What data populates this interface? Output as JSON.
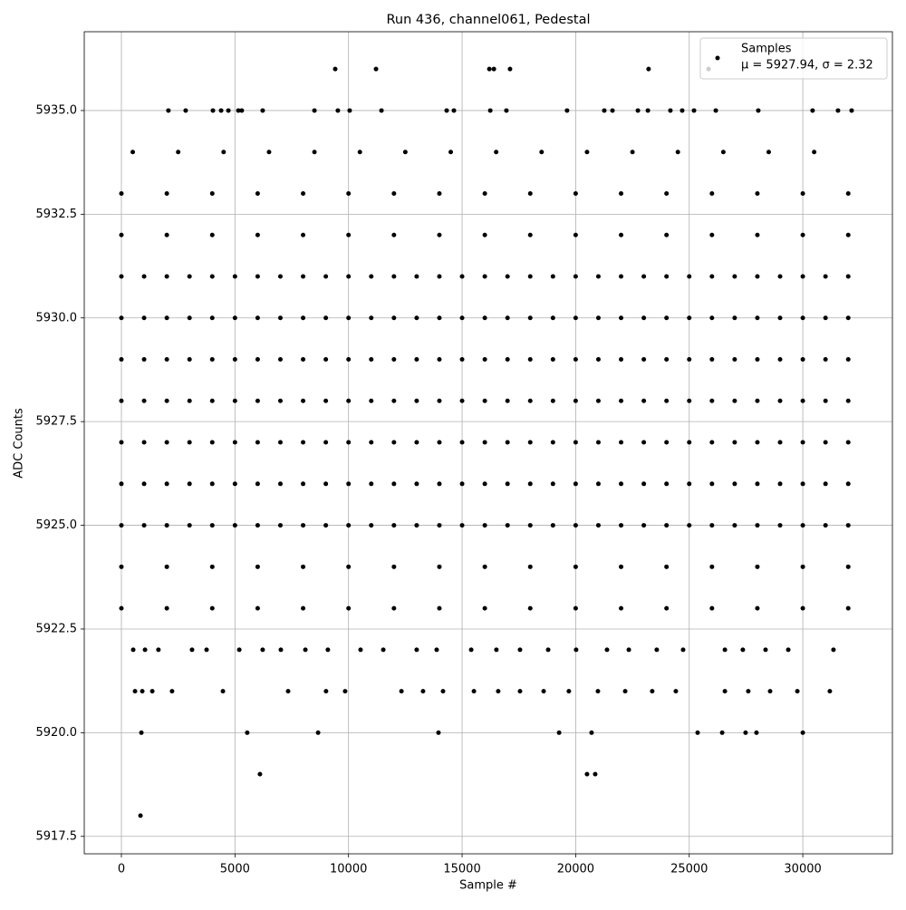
{
  "chart_data": {
    "type": "scatter",
    "title": "Run 436, channel061, Pedestal",
    "x_label": "Sample #",
    "y_label": "ADC Counts",
    "xlim": [
      -1635,
      33945
    ],
    "ylim": [
      5917.08,
      5936.9
    ],
    "xticks": [
      0,
      5000,
      10000,
      15000,
      20000,
      25000,
      30000
    ],
    "yticks": [
      {
        "value": 5917.5,
        "label": "5917.5"
      },
      {
        "value": 5920,
        "label": "5920.0"
      },
      {
        "value": 5922.5,
        "label": "5922.5"
      },
      {
        "value": 5925,
        "label": "5925.0"
      },
      {
        "value": 5927.5,
        "label": "5927.5"
      },
      {
        "value": 5930,
        "label": "5930.0"
      },
      {
        "value": 5932.5,
        "label": "5932.5"
      },
      {
        "value": 5935,
        "label": "5935.0"
      }
    ],
    "grid": true,
    "legend": "upper right",
    "series": [
      {
        "name": "Samples",
        "label": "μ = 5927.94, σ = 2.32",
        "color": "#000000",
        "x": [
          9414,
          11210,
          16200,
          16400,
          17110,
          23210,
          25850,
          2070,
          2830,
          4030,
          4390,
          4710,
          5150,
          5300,
          6220,
          8500,
          9530,
          10050,
          11450,
          14320,
          14640,
          16240,
          16950,
          19620,
          21260,
          21620,
          22740,
          23180,
          24170,
          24690,
          25210,
          26170,
          28040,
          30430,
          31550,
          32150,
          500,
          2500,
          4500,
          6500,
          8500,
          10500,
          12500,
          14500,
          16500,
          18500,
          20500,
          22500,
          24500,
          26500,
          28500,
          30500,
          0,
          2000,
          4000,
          6000,
          8000,
          10000,
          12000,
          14000,
          16000,
          18000,
          20000,
          22000,
          24000,
          26000,
          28000,
          30000,
          32000,
          0,
          2000,
          4000,
          6000,
          8000,
          10000,
          12000,
          14000,
          16000,
          18000,
          20000,
          22000,
          24000,
          26000,
          28000,
          30000,
          32000,
          0,
          1000,
          2000,
          3000,
          4000,
          5000,
          6000,
          7000,
          8000,
          9000,
          10000,
          11000,
          12000,
          13000,
          14000,
          15000,
          16000,
          17000,
          18000,
          19000,
          20000,
          21000,
          22000,
          23000,
          24000,
          25000,
          26000,
          27000,
          28000,
          29000,
          30000,
          31000,
          32000,
          0,
          1000,
          2000,
          3000,
          4000,
          5000,
          6000,
          7000,
          8000,
          9000,
          10000,
          11000,
          12000,
          13000,
          14000,
          15000,
          16000,
          17000,
          18000,
          19000,
          20000,
          21000,
          22000,
          23000,
          24000,
          25000,
          26000,
          27000,
          28000,
          29000,
          30000,
          31000,
          32000,
          0,
          1000,
          2000,
          3000,
          4000,
          5000,
          6000,
          7000,
          8000,
          9000,
          10000,
          11000,
          12000,
          13000,
          14000,
          15000,
          16000,
          17000,
          18000,
          19000,
          20000,
          21000,
          22000,
          23000,
          24000,
          25000,
          26000,
          27000,
          28000,
          29000,
          30000,
          31000,
          32000,
          0,
          1000,
          2000,
          3000,
          4000,
          5000,
          6000,
          7000,
          8000,
          9000,
          10000,
          11000,
          12000,
          13000,
          14000,
          15000,
          16000,
          17000,
          18000,
          19000,
          20000,
          21000,
          22000,
          23000,
          24000,
          25000,
          26000,
          27000,
          28000,
          29000,
          30000,
          31000,
          32000,
          0,
          1000,
          2000,
          3000,
          4000,
          5000,
          6000,
          7000,
          8000,
          9000,
          10000,
          11000,
          12000,
          13000,
          14000,
          15000,
          16000,
          17000,
          18000,
          19000,
          20000,
          21000,
          22000,
          23000,
          24000,
          25000,
          26000,
          27000,
          28000,
          29000,
          30000,
          31000,
          32000,
          0,
          1000,
          2000,
          3000,
          4000,
          5000,
          6000,
          7000,
          8000,
          9000,
          10000,
          11000,
          12000,
          13000,
          14000,
          15000,
          16000,
          17000,
          18000,
          19000,
          20000,
          21000,
          22000,
          23000,
          24000,
          25000,
          26000,
          27000,
          28000,
          29000,
          30000,
          31000,
          32000,
          0,
          1000,
          2000,
          3000,
          4000,
          5000,
          6000,
          7000,
          8000,
          9000,
          10000,
          11000,
          12000,
          13000,
          14000,
          15000,
          16000,
          17000,
          18000,
          19000,
          20000,
          21000,
          22000,
          23000,
          24000,
          25000,
          26000,
          27000,
          28000,
          29000,
          30000,
          31000,
          32000,
          0,
          2000,
          4000,
          6000,
          8000,
          10000,
          12000,
          14000,
          16000,
          18000,
          20000,
          22000,
          24000,
          26000,
          28000,
          30000,
          32000,
          0,
          2000,
          4000,
          6000,
          8000,
          10000,
          12000,
          14000,
          16000,
          18000,
          20000,
          22000,
          24000,
          26000,
          28000,
          30000,
          32000,
          520,
          1040,
          1630,
          3110,
          3750,
          5190,
          6220,
          7020,
          8100,
          9090,
          10530,
          11530,
          13000,
          13880,
          15400,
          16510,
          17550,
          18790,
          20020,
          21380,
          22340,
          23570,
          24730,
          26570,
          27360,
          28360,
          29360,
          31350,
          600,
          920,
          1360,
          2230,
          4470,
          7340,
          9010,
          9850,
          12330,
          13280,
          14160,
          15520,
          16590,
          17550,
          18590,
          19700,
          20980,
          22180,
          23370,
          24410,
          26570,
          27600,
          28560,
          29760,
          31190,
          880,
          5540,
          8660,
          13960,
          19270,
          20700,
          25370,
          26450,
          27480,
          27960,
          30000,
          6100,
          20500,
          20860,
          840
        ],
        "y": [
          5936,
          5936,
          5936,
          5936,
          5936,
          5936,
          5936,
          5935,
          5935,
          5935,
          5935,
          5935,
          5935,
          5935,
          5935,
          5935,
          5935,
          5935,
          5935,
          5935,
          5935,
          5935,
          5935,
          5935,
          5935,
          5935,
          5935,
          5935,
          5935,
          5935,
          5935,
          5935,
          5935,
          5935,
          5935,
          5935,
          5934,
          5934,
          5934,
          5934,
          5934,
          5934,
          5934,
          5934,
          5934,
          5934,
          5934,
          5934,
          5934,
          5934,
          5934,
          5934,
          5933,
          5933,
          5933,
          5933,
          5933,
          5933,
          5933,
          5933,
          5933,
          5933,
          5933,
          5933,
          5933,
          5933,
          5933,
          5933,
          5933,
          5932,
          5932,
          5932,
          5932,
          5932,
          5932,
          5932,
          5932,
          5932,
          5932,
          5932,
          5932,
          5932,
          5932,
          5932,
          5932,
          5932,
          5931,
          5931,
          5931,
          5931,
          5931,
          5931,
          5931,
          5931,
          5931,
          5931,
          5931,
          5931,
          5931,
          5931,
          5931,
          5931,
          5931,
          5931,
          5931,
          5931,
          5931,
          5931,
          5931,
          5931,
          5931,
          5931,
          5931,
          5931,
          5931,
          5931,
          5931,
          5931,
          5931,
          5930,
          5930,
          5930,
          5930,
          5930,
          5930,
          5930,
          5930,
          5930,
          5930,
          5930,
          5930,
          5930,
          5930,
          5930,
          5930,
          5930,
          5930,
          5930,
          5930,
          5930,
          5930,
          5930,
          5930,
          5930,
          5930,
          5930,
          5930,
          5930,
          5930,
          5930,
          5930,
          5930,
          5929,
          5929,
          5929,
          5929,
          5929,
          5929,
          5929,
          5929,
          5929,
          5929,
          5929,
          5929,
          5929,
          5929,
          5929,
          5929,
          5929,
          5929,
          5929,
          5929,
          5929,
          5929,
          5929,
          5929,
          5929,
          5929,
          5929,
          5929,
          5929,
          5929,
          5929,
          5929,
          5929,
          5928,
          5928,
          5928,
          5928,
          5928,
          5928,
          5928,
          5928,
          5928,
          5928,
          5928,
          5928,
          5928,
          5928,
          5928,
          5928,
          5928,
          5928,
          5928,
          5928,
          5928,
          5928,
          5928,
          5928,
          5928,
          5928,
          5928,
          5928,
          5928,
          5928,
          5928,
          5928,
          5928,
          5927,
          5927,
          5927,
          5927,
          5927,
          5927,
          5927,
          5927,
          5927,
          5927,
          5927,
          5927,
          5927,
          5927,
          5927,
          5927,
          5927,
          5927,
          5927,
          5927,
          5927,
          5927,
          5927,
          5927,
          5927,
          5927,
          5927,
          5927,
          5927,
          5927,
          5927,
          5927,
          5927,
          5926,
          5926,
          5926,
          5926,
          5926,
          5926,
          5926,
          5926,
          5926,
          5926,
          5926,
          5926,
          5926,
          5926,
          5926,
          5926,
          5926,
          5926,
          5926,
          5926,
          5926,
          5926,
          5926,
          5926,
          5926,
          5926,
          5926,
          5926,
          5926,
          5926,
          5926,
          5926,
          5926,
          5925,
          5925,
          5925,
          5925,
          5925,
          5925,
          5925,
          5925,
          5925,
          5925,
          5925,
          5925,
          5925,
          5925,
          5925,
          5925,
          5925,
          5925,
          5925,
          5925,
          5925,
          5925,
          5925,
          5925,
          5925,
          5925,
          5925,
          5925,
          5925,
          5925,
          5925,
          5925,
          5925,
          5924,
          5924,
          5924,
          5924,
          5924,
          5924,
          5924,
          5924,
          5924,
          5924,
          5924,
          5924,
          5924,
          5924,
          5924,
          5924,
          5924,
          5923,
          5923,
          5923,
          5923,
          5923,
          5923,
          5923,
          5923,
          5923,
          5923,
          5923,
          5923,
          5923,
          5923,
          5923,
          5923,
          5923,
          5922,
          5922,
          5922,
          5922,
          5922,
          5922,
          5922,
          5922,
          5922,
          5922,
          5922,
          5922,
          5922,
          5922,
          5922,
          5922,
          5922,
          5922,
          5922,
          5922,
          5922,
          5922,
          5922,
          5922,
          5922,
          5922,
          5922,
          5922,
          5921,
          5921,
          5921,
          5921,
          5921,
          5921,
          5921,
          5921,
          5921,
          5921,
          5921,
          5921,
          5921,
          5921,
          5921,
          5921,
          5921,
          5921,
          5921,
          5921,
          5921,
          5921,
          5921,
          5921,
          5921,
          5920,
          5920,
          5920,
          5920,
          5920,
          5920,
          5920,
          5920,
          5920,
          5920,
          5920,
          5919,
          5919,
          5919,
          5918
        ]
      }
    ]
  }
}
